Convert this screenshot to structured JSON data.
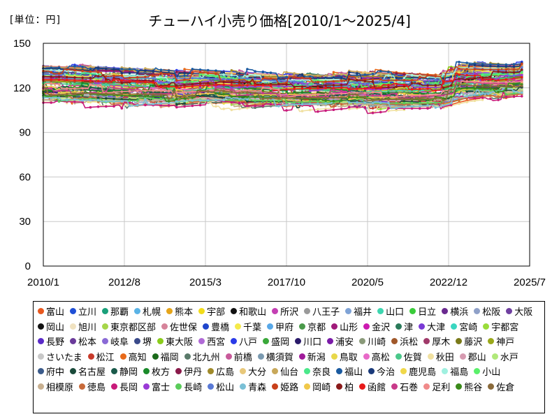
{
  "chart_data": {
    "type": "line",
    "title": "チューハイ小売り価格[2010/1～2025/4]",
    "unit_label": "[単位：円]",
    "x_ticks": [
      "2010/1",
      "2012/8",
      "2015/3",
      "2017/10",
      "2020/5",
      "2022/12",
      "2025/7"
    ],
    "y_ticks": [
      0,
      30,
      60,
      90,
      120,
      150
    ],
    "ylim": [
      0,
      150
    ],
    "xlim": [
      "2010/1",
      "2025/7"
    ],
    "grid": true,
    "legend_position": "bottom",
    "band_summary": {
      "x": [
        "2010/1",
        "2011/1",
        "2012/1",
        "2013/1",
        "2014/1",
        "2014/4",
        "2015/1",
        "2016/1",
        "2017/1",
        "2018/1",
        "2019/1",
        "2019/10",
        "2020/6",
        "2021/1",
        "2022/1",
        "2022/10",
        "2023/1",
        "2024/1",
        "2025/1",
        "2025/4"
      ],
      "typical_low": [
        110,
        110,
        108,
        108,
        108,
        109,
        110,
        108,
        108,
        107,
        107,
        108,
        105,
        106,
        106,
        108,
        114,
        114,
        115,
        115
      ],
      "typical_high": [
        135,
        133,
        133,
        132,
        130,
        130,
        131,
        130,
        129,
        128,
        128,
        129,
        130,
        129,
        128,
        129,
        135,
        135,
        136,
        140
      ]
    },
    "series": [
      {
        "name": "富山",
        "color": "#e8581e"
      },
      {
        "name": "立川",
        "color": "#1f4fd6"
      },
      {
        "name": "那覇",
        "color": "#1aa07a"
      },
      {
        "name": "札幌",
        "color": "#5ab3e6"
      },
      {
        "name": "熊本",
        "color": "#e6a51a"
      },
      {
        "name": "宇部",
        "color": "#f2dc1a"
      },
      {
        "name": "和歌山",
        "color": "#111111"
      },
      {
        "name": "所沢",
        "color": "#c43fb3"
      },
      {
        "name": "八王子",
        "color": "#9a9a9a"
      },
      {
        "name": "福井",
        "color": "#7fa3d6"
      },
      {
        "name": "山口",
        "color": "#3dd6b0"
      },
      {
        "name": "日立",
        "color": "#3acc3a"
      },
      {
        "name": "横浜",
        "color": "#6a2a8f"
      },
      {
        "name": "松阪",
        "color": "#8fa0c8"
      },
      {
        "name": "大阪",
        "color": "#6f3fa0"
      },
      {
        "name": "岡山",
        "color": "#111111"
      },
      {
        "name": "旭川",
        "color": "#f0e2c0"
      },
      {
        "name": "東京都区部",
        "color": "#a6d64a"
      },
      {
        "name": "佐世保",
        "color": "#d6839a"
      },
      {
        "name": "豊橋",
        "color": "#1f46cc"
      },
      {
        "name": "千葉",
        "color": "#f5ea4a"
      },
      {
        "name": "甲府",
        "color": "#58a8e8"
      },
      {
        "name": "京都",
        "color": "#4a9a4a"
      },
      {
        "name": "山形",
        "color": "#a01a7a"
      },
      {
        "name": "金沢",
        "color": "#cc1ab0"
      },
      {
        "name": "津",
        "color": "#2a7a5a"
      },
      {
        "name": "大津",
        "color": "#7a3ad6"
      },
      {
        "name": "宮崎",
        "color": "#3ad6c0"
      },
      {
        "name": "宇都宮",
        "color": "#9adc3a"
      },
      {
        "name": "長野",
        "color": "#5a2ac8"
      },
      {
        "name": "松本",
        "color": "#6a3a9a"
      },
      {
        "name": "岐阜",
        "color": "#8a6ad6"
      },
      {
        "name": "堺",
        "color": "#3a4a8a"
      },
      {
        "name": "東大阪",
        "color": "#8acc1a"
      },
      {
        "name": "西宮",
        "color": "#b06ad6"
      },
      {
        "name": "八戸",
        "color": "#2a3ae8"
      },
      {
        "name": "盛岡",
        "color": "#3aa83a"
      },
      {
        "name": "川口",
        "color": "#2a1a6a"
      },
      {
        "name": "浦安",
        "color": "#7a1aa8"
      },
      {
        "name": "川崎",
        "color": "#8a9a7a"
      },
      {
        "name": "浜松",
        "color": "#a0582a"
      },
      {
        "name": "厚木",
        "color": "#a03a6a"
      },
      {
        "name": "藤沢",
        "color": "#7a7a1a"
      },
      {
        "name": "神戸",
        "color": "#9aa81a"
      },
      {
        "name": "さいたま",
        "color": "#c8c8c8"
      },
      {
        "name": "松江",
        "color": "#c83a2a"
      },
      {
        "name": "高知",
        "color": "#e86a1a"
      },
      {
        "name": "福岡",
        "color": "#1a6a1a"
      },
      {
        "name": "北九州",
        "color": "#5a7a6a"
      },
      {
        "name": "前橋",
        "color": "#c85a9a"
      },
      {
        "name": "横須賀",
        "color": "#7a9ab0"
      },
      {
        "name": "新潟",
        "color": "#a01a9a"
      },
      {
        "name": "鳥取",
        "color": "#e8d84a"
      },
      {
        "name": "高松",
        "color": "#e86ac8"
      },
      {
        "name": "佐賀",
        "color": "#4ac88a"
      },
      {
        "name": "秋田",
        "color": "#f0e0a0"
      },
      {
        "name": "郡山",
        "color": "#d69ab0"
      },
      {
        "name": "水戸",
        "color": "#b0e87a"
      },
      {
        "name": "府中",
        "color": "#3a5a8a"
      },
      {
        "name": "名古屋",
        "color": "#1a4a3a"
      },
      {
        "name": "静岡",
        "color": "#1a5a4a"
      },
      {
        "name": "枚方",
        "color": "#1a8a2a"
      },
      {
        "name": "伊丹",
        "color": "#8a1a4a"
      },
      {
        "name": "広島",
        "color": "#a08a2a"
      },
      {
        "name": "大分",
        "color": "#e8c87a"
      },
      {
        "name": "仙台",
        "color": "#c8a85a"
      },
      {
        "name": "奈良",
        "color": "#4ae88a"
      },
      {
        "name": "福山",
        "color": "#1a5aa0"
      },
      {
        "name": "今治",
        "color": "#1a3a7a"
      },
      {
        "name": "鹿児島",
        "color": "#f0d84a"
      },
      {
        "name": "福島",
        "color": "#a0f0e0"
      },
      {
        "name": "小山",
        "color": "#5af06a"
      },
      {
        "name": "相模原",
        "color": "#c8b090"
      },
      {
        "name": "徳島",
        "color": "#c86a3a"
      },
      {
        "name": "長岡",
        "color": "#c81a7a"
      },
      {
        "name": "富士",
        "color": "#9a3ad6"
      },
      {
        "name": "長崎",
        "color": "#5acc5a"
      },
      {
        "name": "松山",
        "color": "#5a7ad6"
      },
      {
        "name": "青森",
        "color": "#7ac0d6"
      },
      {
        "name": "姫路",
        "color": "#c8401a"
      },
      {
        "name": "岡崎",
        "color": "#f0c84a"
      },
      {
        "name": "柏",
        "color": "#8a1a1a"
      },
      {
        "name": "函館",
        "color": "#e81a1a"
      },
      {
        "name": "石巻",
        "color": "#c83a8a"
      },
      {
        "name": "足利",
        "color": "#f08a8a"
      },
      {
        "name": "熊谷",
        "color": "#3a8a1a"
      },
      {
        "name": "佐倉",
        "color": "#8a6a3a"
      }
    ]
  }
}
